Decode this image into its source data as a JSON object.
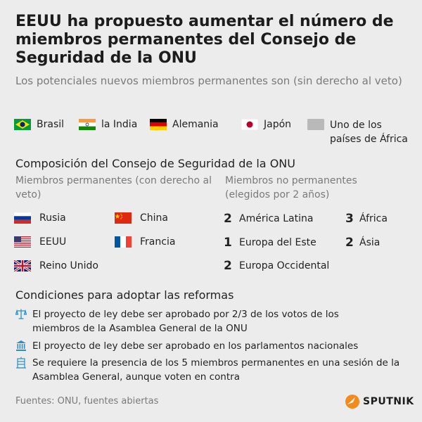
{
  "title": "EEUU ha propuesto aumentar el número de miembros permanentes del Consejo de Seguridad de la ONU",
  "subtitle": "Los potenciales nuevos miembros permanentes son (sin derecho al veto)",
  "candidates": [
    {
      "label": "Brasil",
      "icon": "flag-brazil"
    },
    {
      "label": "la India",
      "icon": "flag-india"
    },
    {
      "label": "Alemania",
      "icon": "flag-germany"
    },
    {
      "label": "Japón",
      "icon": "flag-japan"
    },
    {
      "label": "Uno de los países de África",
      "icon": "grey-square"
    }
  ],
  "composition": {
    "title": "Composición del Consejo de Seguridad de la ONU",
    "permanent_header": "Miembros permanentes (con derecho al veto)",
    "nonpermanent_header": "Miembros no permanentes (elegidos por 2 años)",
    "permanent": [
      {
        "label": "Rusia",
        "icon": "flag-russia"
      },
      {
        "label": "China",
        "icon": "flag-china"
      },
      {
        "label": "EEUU",
        "icon": "flag-usa"
      },
      {
        "label": "Francia",
        "icon": "flag-france"
      },
      {
        "label": "Reino Unido",
        "icon": "flag-uk"
      }
    ],
    "nonpermanent": [
      {
        "count": "2",
        "label": "América Latina"
      },
      {
        "count": "3",
        "label": "África"
      },
      {
        "count": "1",
        "label": "Europa del Este"
      },
      {
        "count": "2",
        "label": "Ásia"
      },
      {
        "count": "2",
        "label": "Europa Occidental"
      }
    ]
  },
  "conditions": {
    "title": "Condiciones para adoptar las reformas",
    "items": [
      {
        "text": "El proyecto de ley debe ser aprobado por 2/3 de los votos de los miembros de la Asamblea General de la ONU",
        "icon": "scales-icon"
      },
      {
        "text": "El proyecto de ley debe ser aprobado en los parlamentos nacionales",
        "icon": "parliament-icon"
      },
      {
        "text": "Se requiere la presencia de los 5 miembros permanentes en una sesión de la Asamblea General, aunque voten en contra",
        "icon": "assembly-icon"
      }
    ]
  },
  "sources": "Fuentes: ONU, fuentes abiertas",
  "brand": "SPUTNIK",
  "colors": {
    "accent_icon": "#2a8fc8",
    "muted_text": "#7a7a7a",
    "background": "#ececec",
    "logo_orange": "#f28a1e"
  }
}
